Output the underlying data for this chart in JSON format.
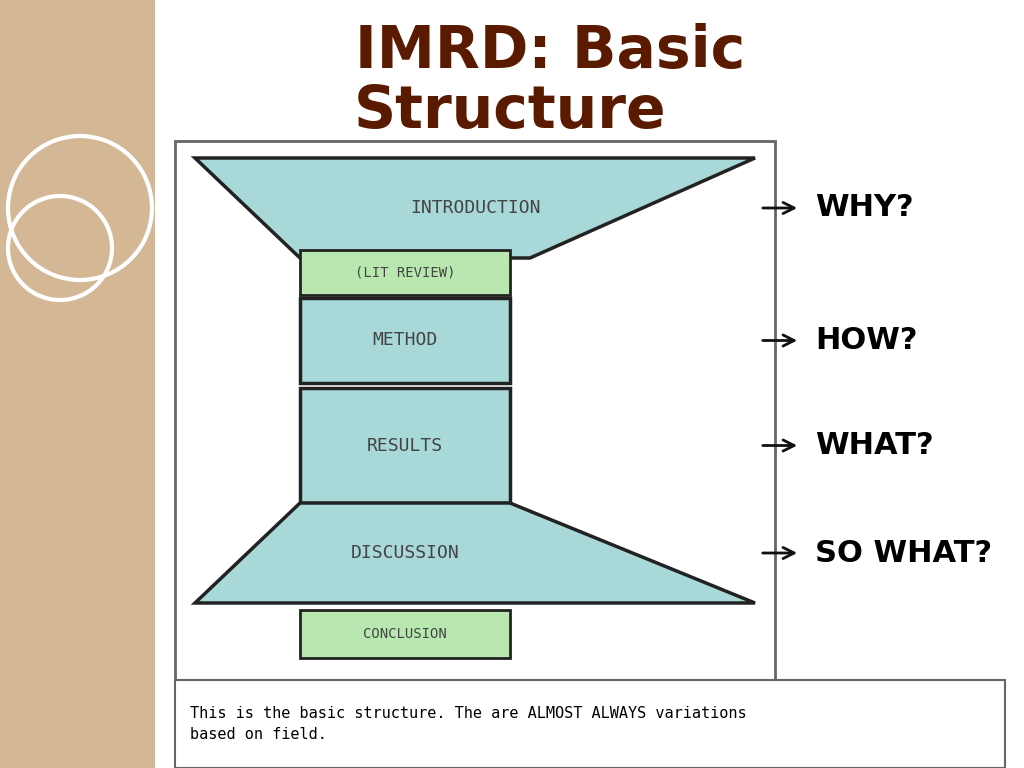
{
  "title_line1": "IMRD: Basic",
  "title_line2": "Structure",
  "title_color": "#5a1a00",
  "title_fontsize": 42,
  "bg_color_left": "#d4b896",
  "bg_color_main": "#ffffff",
  "teal_fill": "#a8d8d8",
  "green_fill": "#b8e8b0",
  "box_edge": "#222222",
  "text_color": "#444444",
  "arrow_color": "#111111",
  "bottom_text": "This is the basic structure. The are ALMOST ALWAYS variations\nbased on field.",
  "sections": [
    "INTRODUCTION",
    "(LIT REVIEW)",
    "METHOD",
    "RESULTS",
    "DISCUSSION",
    "CONCLUSION"
  ],
  "questions": [
    "WHY?",
    "HOW?",
    "WHAT?",
    "SO WHAT?"
  ],
  "question_fontsize": 22,
  "section_fontsize": 13
}
